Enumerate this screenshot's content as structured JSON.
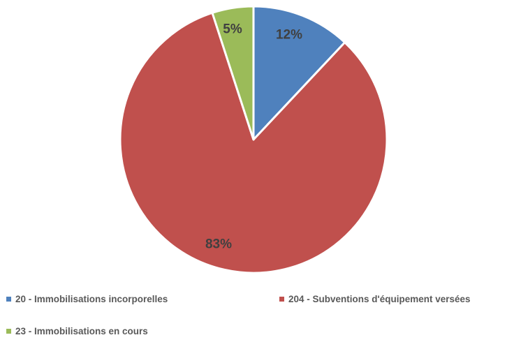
{
  "chart_data": {
    "type": "pie",
    "slices": [
      {
        "name": "20 - Immobilisations incorporelles",
        "value": 12,
        "label": "12%",
        "color": "#4F81BD"
      },
      {
        "name": "204 - Subventions d'équipement versées",
        "value": 83,
        "label": "83%",
        "color": "#C0504D"
      },
      {
        "name": "23 - Immobilisations en cours",
        "value": 5,
        "label": "5%",
        "color": "#9BBB59"
      }
    ],
    "legend_position": "bottom"
  }
}
